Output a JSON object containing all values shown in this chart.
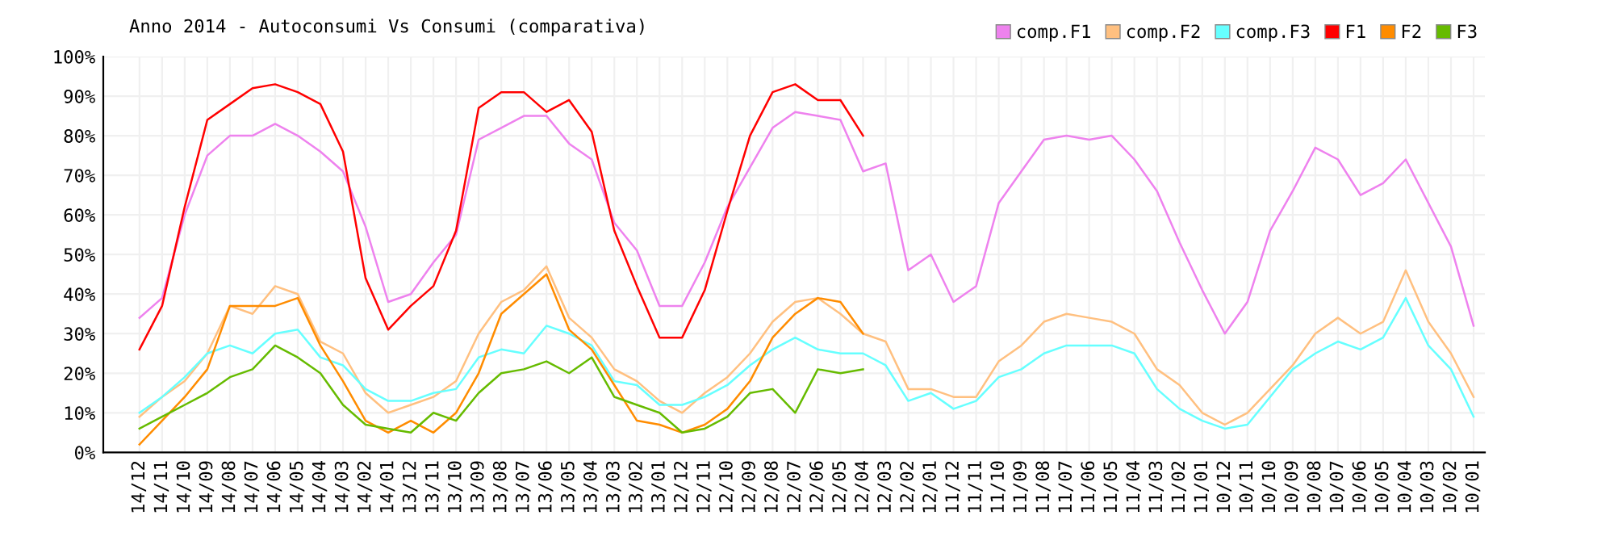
{
  "chart_data": {
    "type": "line",
    "title": "Anno 2014 - Autoconsumi Vs Consumi (comparativa)",
    "categories": [
      "14/12",
      "14/11",
      "14/10",
      "14/09",
      "14/08",
      "14/07",
      "14/06",
      "14/05",
      "14/04",
      "14/03",
      "14/02",
      "14/01",
      "13/12",
      "13/11",
      "13/10",
      "13/09",
      "13/08",
      "13/07",
      "13/06",
      "13/05",
      "13/04",
      "13/03",
      "13/02",
      "13/01",
      "12/12",
      "12/11",
      "12/10",
      "12/09",
      "12/08",
      "12/07",
      "12/06",
      "12/05",
      "12/04",
      "12/03",
      "12/02",
      "12/01",
      "11/12",
      "11/11",
      "11/10",
      "11/09",
      "11/08",
      "11/07",
      "11/06",
      "11/05",
      "11/04",
      "11/03",
      "11/02",
      "11/01",
      "10/12",
      "10/11",
      "10/10",
      "10/09",
      "10/08",
      "10/07",
      "10/06",
      "10/05",
      "10/04",
      "10/03",
      "10/02",
      "10/01"
    ],
    "series": [
      {
        "name": "comp.F1",
        "color": "#ee82ee",
        "values": [
          34,
          39,
          60,
          75,
          80,
          80,
          83,
          80,
          76,
          71,
          57,
          38,
          40,
          48,
          55,
          79,
          82,
          85,
          85,
          78,
          74,
          58,
          51,
          37,
          37,
          48,
          62,
          72,
          82,
          86,
          85,
          84,
          71,
          73,
          46,
          50,
          38,
          42,
          63,
          71,
          79,
          80,
          79,
          80,
          74,
          66,
          53,
          41,
          30,
          38,
          56,
          66,
          77,
          74,
          65,
          68,
          74,
          63,
          52,
          32
        ]
      },
      {
        "name": "comp.F2",
        "color": "#ffc080",
        "values": [
          9,
          14,
          18,
          25,
          37,
          35,
          42,
          40,
          28,
          25,
          15,
          10,
          12,
          14,
          18,
          30,
          38,
          41,
          47,
          34,
          29,
          21,
          18,
          13,
          10,
          15,
          19,
          25,
          33,
          38,
          39,
          35,
          30,
          28,
          16,
          16,
          14,
          14,
          23,
          27,
          33,
          35,
          34,
          33,
          30,
          21,
          17,
          10,
          7,
          10,
          16,
          22,
          30,
          34,
          30,
          33,
          46,
          33,
          25,
          14
        ]
      },
      {
        "name": "comp.F3",
        "color": "#66ffff",
        "values": [
          10,
          14,
          19,
          25,
          27,
          25,
          30,
          31,
          24,
          22,
          16,
          13,
          13,
          15,
          16,
          24,
          26,
          25,
          32,
          30,
          27,
          18,
          17,
          12,
          12,
          14,
          17,
          22,
          26,
          29,
          26,
          25,
          25,
          22,
          13,
          15,
          11,
          13,
          19,
          21,
          25,
          27,
          27,
          27,
          25,
          16,
          11,
          8,
          6,
          7,
          14,
          21,
          25,
          28,
          26,
          29,
          39,
          27,
          21,
          9
        ]
      },
      {
        "name": "F1",
        "color": "#ff0000",
        "values": [
          26,
          37,
          62,
          84,
          88,
          92,
          93,
          91,
          88,
          76,
          44,
          31,
          37,
          42,
          56,
          87,
          91,
          91,
          86,
          89,
          81,
          56,
          42,
          29,
          29,
          41,
          61,
          80,
          91,
          93,
          89,
          89,
          80,
          null,
          null,
          null,
          null,
          null,
          null,
          null,
          null,
          null,
          null,
          null,
          null,
          null,
          null,
          null,
          null,
          null,
          null,
          null,
          null,
          null,
          null,
          null,
          null,
          null,
          null,
          null
        ]
      },
      {
        "name": "F2",
        "color": "#ff8c00",
        "values": [
          2,
          8,
          14,
          21,
          37,
          37,
          37,
          39,
          27,
          18,
          8,
          5,
          8,
          5,
          10,
          20,
          35,
          40,
          45,
          31,
          26,
          17,
          8,
          7,
          5,
          7,
          11,
          18,
          29,
          35,
          39,
          38,
          30,
          null,
          null,
          null,
          null,
          null,
          null,
          null,
          null,
          null,
          null,
          null,
          null,
          null,
          null,
          null,
          null,
          null,
          null,
          null,
          null,
          null,
          null,
          null,
          null,
          null,
          null,
          null
        ]
      },
      {
        "name": "F3",
        "color": "#66bb00",
        "values": [
          6,
          9,
          12,
          15,
          19,
          21,
          27,
          24,
          20,
          12,
          7,
          6,
          5,
          10,
          8,
          15,
          20,
          21,
          23,
          20,
          24,
          14,
          12,
          10,
          5,
          6,
          9,
          15,
          16,
          10,
          21,
          20,
          21,
          null,
          null,
          null,
          null,
          null,
          null,
          null,
          null,
          null,
          null,
          null,
          null,
          null,
          null,
          null,
          null,
          null,
          null,
          null,
          null,
          null,
          null,
          null,
          null,
          null,
          null,
          null
        ]
      }
    ],
    "ylim": [
      0,
      100
    ],
    "yticks": [
      {
        "value": 0,
        "label": "0%"
      },
      {
        "value": 10,
        "label": "10%"
      },
      {
        "value": 20,
        "label": "20%"
      },
      {
        "value": 30,
        "label": "30%"
      },
      {
        "value": 40,
        "label": "40%"
      },
      {
        "value": 50,
        "label": "50%"
      },
      {
        "value": 60,
        "label": "60%"
      },
      {
        "value": 70,
        "label": "70%"
      },
      {
        "value": 80,
        "label": "80%"
      },
      {
        "value": 90,
        "label": "90%"
      },
      {
        "value": 100,
        "label": "100%"
      }
    ],
    "grid": true,
    "legend": "top right"
  }
}
